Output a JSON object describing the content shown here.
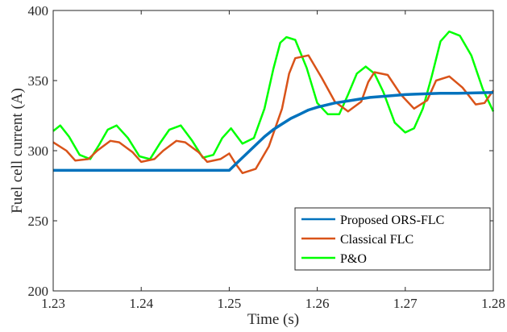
{
  "chart_data": {
    "type": "line",
    "xlabel": "Time (s)",
    "ylabel": "Fuel cell current (A)",
    "xlim": [
      1.23,
      1.28
    ],
    "ylim": [
      200,
      400
    ],
    "x_ticks": [
      1.23,
      1.24,
      1.25,
      1.26,
      1.27,
      1.28
    ],
    "x_tick_labels": [
      "1.23",
      "1.24",
      "1.25",
      "1.26",
      "1.27",
      "1.28"
    ],
    "y_ticks": [
      200,
      250,
      300,
      350,
      400
    ],
    "y_tick_labels": [
      "200",
      "250",
      "300",
      "350",
      "400"
    ],
    "grid": false,
    "legend_position": "bottom-right",
    "series": [
      {
        "name": "Proposed ORS-FLC",
        "color": "#0072BD",
        "x": [
          1.23,
          1.235,
          1.24,
          1.245,
          1.25,
          1.251,
          1.252,
          1.253,
          1.254,
          1.255,
          1.256,
          1.257,
          1.258,
          1.259,
          1.26,
          1.262,
          1.264,
          1.266,
          1.268,
          1.27,
          1.272,
          1.274,
          1.276,
          1.278,
          1.28
        ],
        "y": [
          286,
          286,
          286,
          286,
          286,
          292,
          298,
          304,
          310,
          315,
          319,
          323,
          326,
          329,
          331,
          334,
          336,
          338,
          339,
          340,
          340.5,
          341,
          341,
          341.2,
          341.5
        ]
      },
      {
        "name": "Classical FLC",
        "color": "#D95319",
        "x": [
          1.23,
          1.2315,
          1.2325,
          1.234,
          1.235,
          1.2365,
          1.2375,
          1.239,
          1.24,
          1.2415,
          1.2425,
          1.244,
          1.245,
          1.2465,
          1.2475,
          1.249,
          1.25,
          1.2508,
          1.2515,
          1.253,
          1.2545,
          1.256,
          1.2568,
          1.2575,
          1.259,
          1.2605,
          1.262,
          1.2635,
          1.265,
          1.2658,
          1.2665,
          1.268,
          1.2695,
          1.271,
          1.2725,
          1.2735,
          1.275,
          1.2765,
          1.278,
          1.279,
          1.28
        ],
        "y": [
          306,
          300,
          293,
          294,
          300,
          307,
          306,
          299,
          292,
          294,
          300,
          307,
          306,
          299,
          292,
          294,
          298,
          290,
          284,
          287,
          303,
          330,
          355,
          366,
          368,
          352,
          335,
          328,
          335,
          349,
          356,
          354,
          340,
          330,
          336,
          350,
          353,
          345,
          333,
          334,
          343
        ]
      },
      {
        "name": "P&O",
        "color": "#00FF00",
        "x": [
          1.23,
          1.2308,
          1.2318,
          1.233,
          1.2342,
          1.2352,
          1.2362,
          1.2372,
          1.2385,
          1.2398,
          1.241,
          1.2422,
          1.2432,
          1.2445,
          1.2458,
          1.247,
          1.2482,
          1.2492,
          1.2502,
          1.2515,
          1.2528,
          1.254,
          1.255,
          1.2558,
          1.2565,
          1.2575,
          1.2588,
          1.26,
          1.2612,
          1.2625,
          1.2635,
          1.2645,
          1.2655,
          1.2665,
          1.2675,
          1.2688,
          1.27,
          1.271,
          1.272,
          1.273,
          1.274,
          1.275,
          1.2762,
          1.2775,
          1.2788,
          1.28
        ],
        "y": [
          314,
          318,
          310,
          297,
          294,
          304,
          315,
          318,
          309,
          296,
          294,
          306,
          315,
          318,
          307,
          295,
          297,
          309,
          316,
          305,
          309,
          330,
          358,
          377,
          381,
          379,
          359,
          334,
          326,
          326,
          340,
          355,
          360,
          355,
          342,
          320,
          313,
          316,
          330,
          353,
          378,
          385,
          382,
          368,
          344,
          328
        ]
      }
    ]
  }
}
